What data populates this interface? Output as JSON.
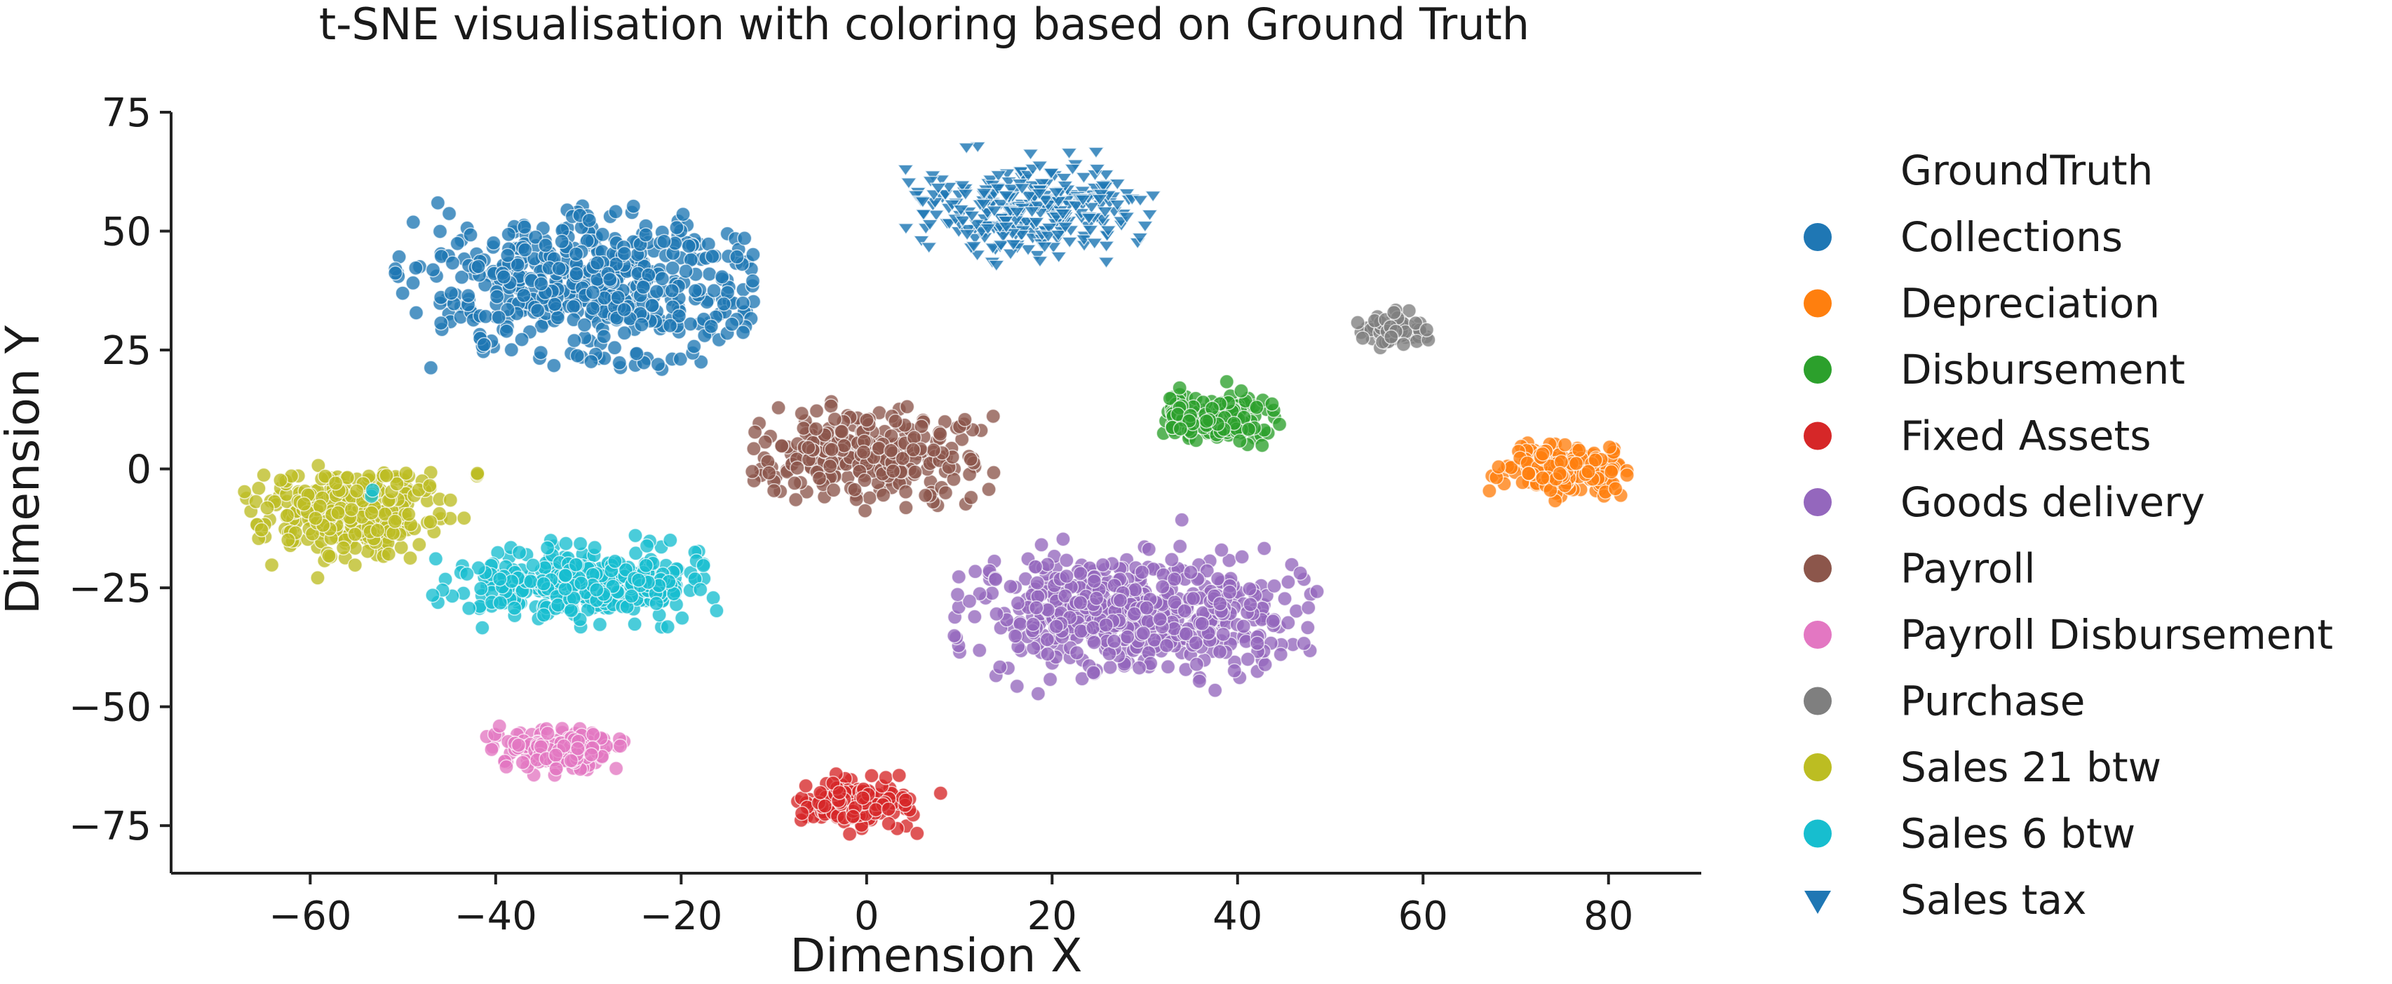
{
  "chart_data": {
    "type": "scatter",
    "title": "t-SNE visualisation with coloring based on Ground Truth",
    "xlabel": "Dimension X",
    "ylabel": "Dimension Y",
    "xlim": [
      -75,
      90
    ],
    "ylim": [
      -85,
      75
    ],
    "xticks": [
      -60,
      -40,
      -20,
      0,
      20,
      40,
      60,
      80
    ],
    "yticks": [
      -75,
      -50,
      -25,
      0,
      25,
      50,
      75
    ],
    "xtick_labels": [
      "−60",
      "−40",
      "−20",
      "0",
      "20",
      "40",
      "60",
      "80"
    ],
    "ytick_labels": [
      "−75",
      "−50",
      "−25",
      "0",
      "25",
      "50",
      "75"
    ],
    "grid": false,
    "legend": {
      "title": "GroundTruth",
      "position": "right"
    },
    "series": [
      {
        "name": "Collections",
        "color": "#1f77b4",
        "marker": "circle",
        "clusters": [
          {
            "center": [
              -29,
              38
            ],
            "spread": [
              10,
              8
            ],
            "range_x": [
              -51,
              -12
            ],
            "range_y": [
              20,
              56
            ],
            "count": 520
          }
        ]
      },
      {
        "name": "Depreciation",
        "color": "#ff7f0e",
        "marker": "circle",
        "clusters": [
          {
            "center": [
              75,
              0
            ],
            "spread": [
              3.4,
              2.3
            ],
            "range_x": [
              67,
              82
            ],
            "range_y": [
              -7,
              7
            ],
            "count": 230
          }
        ]
      },
      {
        "name": "Disbursement",
        "color": "#2ca02c",
        "marker": "circle",
        "clusters": [
          {
            "center": [
              38,
              11
            ],
            "spread": [
              3,
              2.6
            ],
            "range_x": [
              32,
              45
            ],
            "range_y": [
              4,
              19
            ],
            "count": 170
          }
        ]
      },
      {
        "name": "Fixed Assets",
        "color": "#d62728",
        "marker": "circle",
        "clusters": [
          {
            "center": [
              -1,
              -70
            ],
            "spread": [
              3,
              2.6
            ],
            "range_x": [
              -8,
              6
            ],
            "range_y": [
              -78,
              -62
            ],
            "count": 160
          },
          {
            "center": [
              8,
              -68
            ],
            "spread": [
              0.3,
              0.3
            ],
            "range_x": [
              7.5,
              8.5
            ],
            "range_y": [
              -68.5,
              -67.5
            ],
            "count": 1
          }
        ]
      },
      {
        "name": "Goods delivery",
        "color": "#9467bd",
        "marker": "circle",
        "clusters": [
          {
            "center": [
              28,
              -30
            ],
            "spread": [
              9.5,
              6.5
            ],
            "range_x": [
              9,
              49
            ],
            "range_y": [
              -48,
              -10
            ],
            "count": 560
          }
        ]
      },
      {
        "name": "Payroll",
        "color": "#8c564b",
        "marker": "circle",
        "clusters": [
          {
            "center": [
              0,
              3
            ],
            "spread": [
              5.5,
              4.4
            ],
            "range_x": [
              -13,
              14
            ],
            "range_y": [
              -12,
              18
            ],
            "count": 300
          }
        ]
      },
      {
        "name": "Payroll Disbursement",
        "color": "#e377c2",
        "marker": "circle",
        "clusters": [
          {
            "center": [
              -33,
              -59
            ],
            "spread": [
              3.6,
              2.1
            ],
            "range_x": [
              -41,
              -26
            ],
            "range_y": [
              -65,
              -53
            ],
            "count": 170
          }
        ]
      },
      {
        "name": "Purchase",
        "color": "#7f7f7f",
        "marker": "circle",
        "clusters": [
          {
            "center": [
              57,
              29
            ],
            "spread": [
              2.2,
              1.5
            ],
            "range_x": [
              52,
              61
            ],
            "range_y": [
              25,
              34
            ],
            "count": 80
          }
        ]
      },
      {
        "name": "Sales 21 btw",
        "color": "#bcbd22",
        "marker": "circle",
        "clusters": [
          {
            "center": [
              -56,
              -9
            ],
            "spread": [
              5,
              4.5
            ],
            "range_x": [
              -68,
              -43
            ],
            "range_y": [
              -26,
              2
            ],
            "count": 330
          },
          {
            "center": [
              -42,
              -1
            ],
            "spread": [
              0.6,
              0.6
            ],
            "range_x": [
              -43,
              -41
            ],
            "range_y": [
              -2,
              0
            ],
            "count": 3
          }
        ]
      },
      {
        "name": "Sales 6 btw",
        "color": "#17becf",
        "marker": "circle",
        "clusters": [
          {
            "center": [
              -30,
              -24
            ],
            "spread": [
              6.5,
              3.5
            ],
            "range_x": [
              -44,
              -16
            ],
            "range_y": [
              -35,
              -14
            ],
            "count": 370
          },
          {
            "center": [
              -46,
              -24
            ],
            "spread": [
              0.8,
              2.5
            ],
            "range_x": [
              -47,
              -44
            ],
            "range_y": [
              -30,
              -12
            ],
            "count": 6
          },
          {
            "center": [
              -53,
              -5
            ],
            "spread": [
              1,
              1
            ],
            "range_x": [
              -54,
              -51
            ],
            "range_y": [
              -6,
              -2
            ],
            "count": 2
          }
        ]
      },
      {
        "name": "Sales tax",
        "color": "#1f77b4",
        "marker": "triangle-down",
        "clusters": [
          {
            "center": [
              18,
              54
            ],
            "spread": [
              6.5,
              5
            ],
            "range_x": [
              4,
              31
            ],
            "range_y": [
              42,
              68
            ],
            "count": 300
          }
        ]
      }
    ]
  }
}
